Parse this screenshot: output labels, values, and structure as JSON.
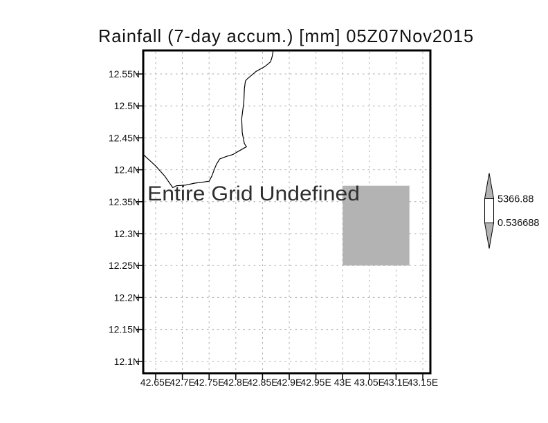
{
  "chart_data": {
    "type": "map",
    "title": "Rainfall (7-day accum.) [mm] 05Z07Nov2015",
    "annotation": "Entire Grid Undefined",
    "x_axis": {
      "ticks": [
        "42.65E",
        "42.7E",
        "42.75E",
        "42.8E",
        "42.85E",
        "42.9E",
        "42.95E",
        "43E",
        "43.05E",
        "43.1E",
        "43.15E"
      ],
      "values": [
        42.65,
        42.7,
        42.75,
        42.8,
        42.85,
        42.9,
        42.95,
        43.0,
        43.05,
        43.1,
        43.15
      ],
      "range": [
        42.6267,
        43.1642
      ]
    },
    "y_axis": {
      "ticks": [
        "12.55N",
        "12.5N",
        "12.45N",
        "12.4N",
        "12.35N",
        "12.3N",
        "12.25N",
        "12.2N",
        "12.15N",
        "12.1N"
      ],
      "values": [
        12.55,
        12.5,
        12.45,
        12.4,
        12.35,
        12.3,
        12.25,
        12.2,
        12.15,
        12.1
      ],
      "range": [
        12.0814,
        12.5868
      ]
    },
    "grid": {
      "style": "dotted",
      "color": "#aaaaaa"
    },
    "coastline": {
      "color": "#000000",
      "points": [
        [
          42.87,
          12.587
        ],
        [
          42.868,
          12.577
        ],
        [
          42.865,
          12.569
        ],
        [
          42.855,
          12.562
        ],
        [
          42.838,
          12.554
        ],
        [
          42.821,
          12.542
        ],
        [
          42.818,
          12.539
        ],
        [
          42.816,
          12.527
        ],
        [
          42.815,
          12.506
        ],
        [
          42.811,
          12.48
        ],
        [
          42.812,
          12.458
        ],
        [
          42.816,
          12.441
        ],
        [
          42.82,
          12.436
        ],
        [
          42.805,
          12.429
        ],
        [
          42.795,
          12.424
        ],
        [
          42.783,
          12.421
        ],
        [
          42.77,
          12.417
        ],
        [
          42.764,
          12.409
        ],
        [
          42.76,
          12.401
        ],
        [
          42.755,
          12.39
        ],
        [
          42.75,
          12.382
        ],
        [
          42.741,
          12.381
        ],
        [
          42.723,
          12.379
        ],
        [
          42.706,
          12.376
        ],
        [
          42.689,
          12.375
        ],
        [
          42.682,
          12.372
        ],
        [
          42.667,
          12.39
        ],
        [
          42.65,
          12.406
        ],
        [
          42.633,
          12.419
        ],
        [
          42.627,
          12.424
        ]
      ]
    },
    "shaded_region": {
      "lon_min": 43.0,
      "lon_max": 43.125,
      "lat_min": 12.25,
      "lat_max": 12.375,
      "color": "#b3b3b3"
    },
    "colorbar": {
      "max_label": "5366.88",
      "min_label": "0.536688",
      "arrow_color": "#b3b3b3",
      "box_color": "#ffffff"
    }
  }
}
